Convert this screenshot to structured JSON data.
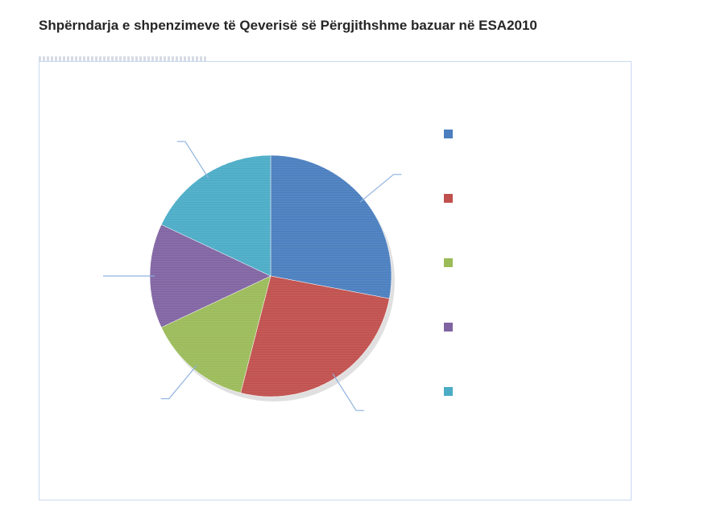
{
  "title": "Shpërndarja e shpenzimeve të Qeverisë së Përgjithshme bazuar në ESA2010",
  "chart_data": {
    "type": "pie",
    "categories": [
      "",
      "",
      "",
      "",
      ""
    ],
    "values": [
      28,
      26,
      14,
      14,
      18
    ],
    "colors": [
      "#4a7ebf",
      "#c0504d",
      "#9bbb59",
      "#8064a2",
      "#4bacc6"
    ],
    "legend_position": "right"
  }
}
